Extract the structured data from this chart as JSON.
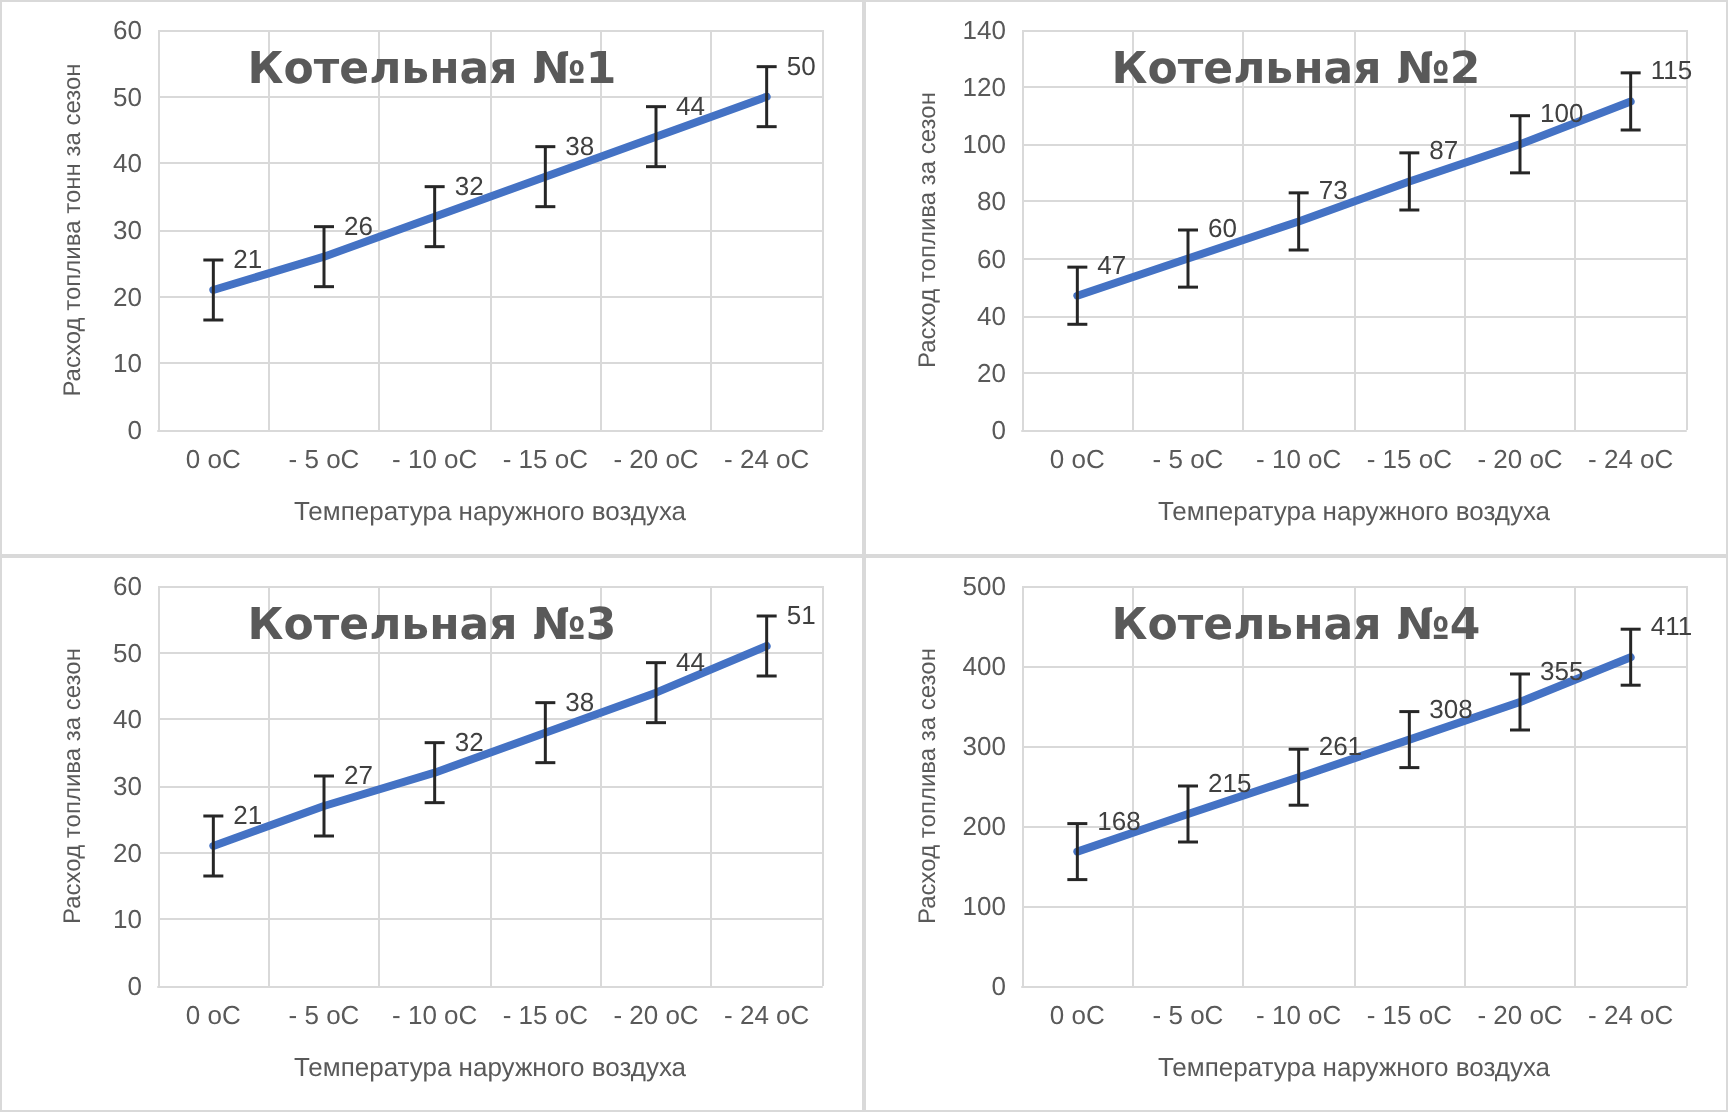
{
  "chart_data": [
    {
      "type": "line",
      "title": "Котельная №1",
      "xlabel": "Температура наружного воздуха",
      "ylabel": "Расход топлива тонн за сезон",
      "categories": [
        "0 oC",
        "- 5 oC",
        "- 10 oC",
        "- 15 oC",
        "- 20 oC",
        "- 24 oC"
      ],
      "series": [
        {
          "color": "#4472c4",
          "values": [
            21,
            26,
            32,
            38,
            44,
            50
          ],
          "errors": [
            4.5,
            4.5,
            4.5,
            4.5,
            4.5,
            4.5
          ]
        }
      ],
      "ylim": [
        0,
        60
      ],
      "yticks": [
        0,
        10,
        20,
        30,
        40,
        50,
        60
      ],
      "grid": true,
      "data_labels": true,
      "marker": "none"
    },
    {
      "type": "line",
      "title": "Котельная №2",
      "xlabel": "Температура наружного воздуха",
      "ylabel": "Расход топлива за сезон",
      "categories": [
        "0 oC",
        "- 5 oC",
        "- 10 oC",
        "- 15 oC",
        "- 20 oC",
        "- 24 oC"
      ],
      "series": [
        {
          "color": "#4472c4",
          "values": [
            47,
            60,
            73,
            87,
            100,
            115
          ],
          "errors": [
            10,
            10,
            10,
            10,
            10,
            10
          ]
        }
      ],
      "ylim": [
        0,
        140
      ],
      "yticks": [
        0,
        20,
        40,
        60,
        80,
        100,
        120,
        140
      ],
      "grid": true,
      "data_labels": true,
      "marker": "none"
    },
    {
      "type": "line",
      "title": "Котельная №3",
      "xlabel": "Температура наружного воздуха",
      "ylabel": "Расход топлива за сезон",
      "categories": [
        "0 oC",
        "- 5 oC",
        "- 10 oC",
        "- 15 oC",
        "- 20 oC",
        "- 24 oC"
      ],
      "series": [
        {
          "color": "#4472c4",
          "values": [
            21,
            27,
            32,
            38,
            44,
            51
          ],
          "errors": [
            4.5,
            4.5,
            4.5,
            4.5,
            4.5,
            4.5
          ]
        }
      ],
      "ylim": [
        0,
        60
      ],
      "yticks": [
        0,
        10,
        20,
        30,
        40,
        50,
        60
      ],
      "grid": true,
      "data_labels": true,
      "marker": "none"
    },
    {
      "type": "line",
      "title": "Котельная №4",
      "xlabel": "Температура наружного воздуха",
      "ylabel": "Расход топлива за сезон",
      "categories": [
        "0 oC",
        "- 5 oC",
        "- 10 oC",
        "- 15 oC",
        "- 20 oC",
        "- 24 oC"
      ],
      "series": [
        {
          "color": "#4472c4",
          "values": [
            168,
            215,
            261,
            308,
            355,
            411
          ],
          "errors": [
            35,
            35,
            35,
            35,
            35,
            35
          ]
        }
      ],
      "ylim": [
        0,
        500
      ],
      "yticks": [
        0,
        100,
        200,
        300,
        400,
        500
      ],
      "grid": true,
      "data_labels": true,
      "marker": "none"
    }
  ]
}
